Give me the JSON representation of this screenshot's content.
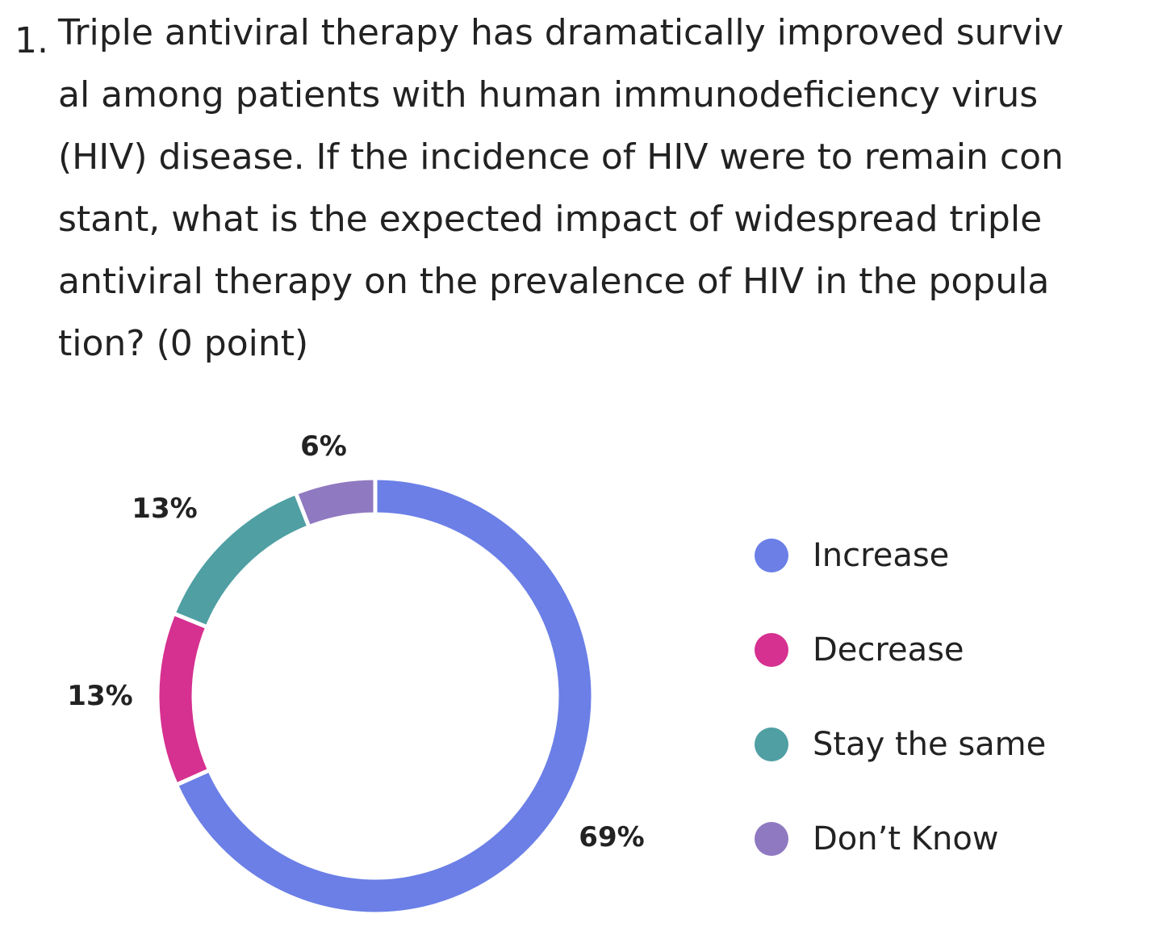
{
  "question": {
    "number": "1.",
    "lines": [
      "Triple antiviral therapy has dramatically improved surviv",
      "al among patients with human immunodeficiency virus",
      "(HIV) disease. If the incidence of HIV were to remain con",
      "stant, what is the expected impact of widespread triple",
      "antiviral therapy on the prevalence of HIV in the popula",
      "tion? (0 point)"
    ]
  },
  "chart_data": {
    "type": "pie",
    "style": "donut",
    "categories": [
      "Increase",
      "Decrease",
      "Stay the same",
      "Don't Know"
    ],
    "values": [
      69,
      13,
      13,
      6
    ],
    "labels": [
      "69%",
      "13%",
      "13%",
      "6%"
    ],
    "colors": [
      "#6b7fe6",
      "#d63090",
      "#4f9fa3",
      "#8f79c0"
    ],
    "legend_position": "right"
  },
  "legend": {
    "items": [
      {
        "label": "Increase",
        "color": "#6b7fe6"
      },
      {
        "label": "Decrease",
        "color": "#d63090"
      },
      {
        "label": "Stay the same",
        "color": "#4f9fa3"
      },
      {
        "label": "Don’t Know",
        "color": "#8f79c0"
      }
    ]
  }
}
